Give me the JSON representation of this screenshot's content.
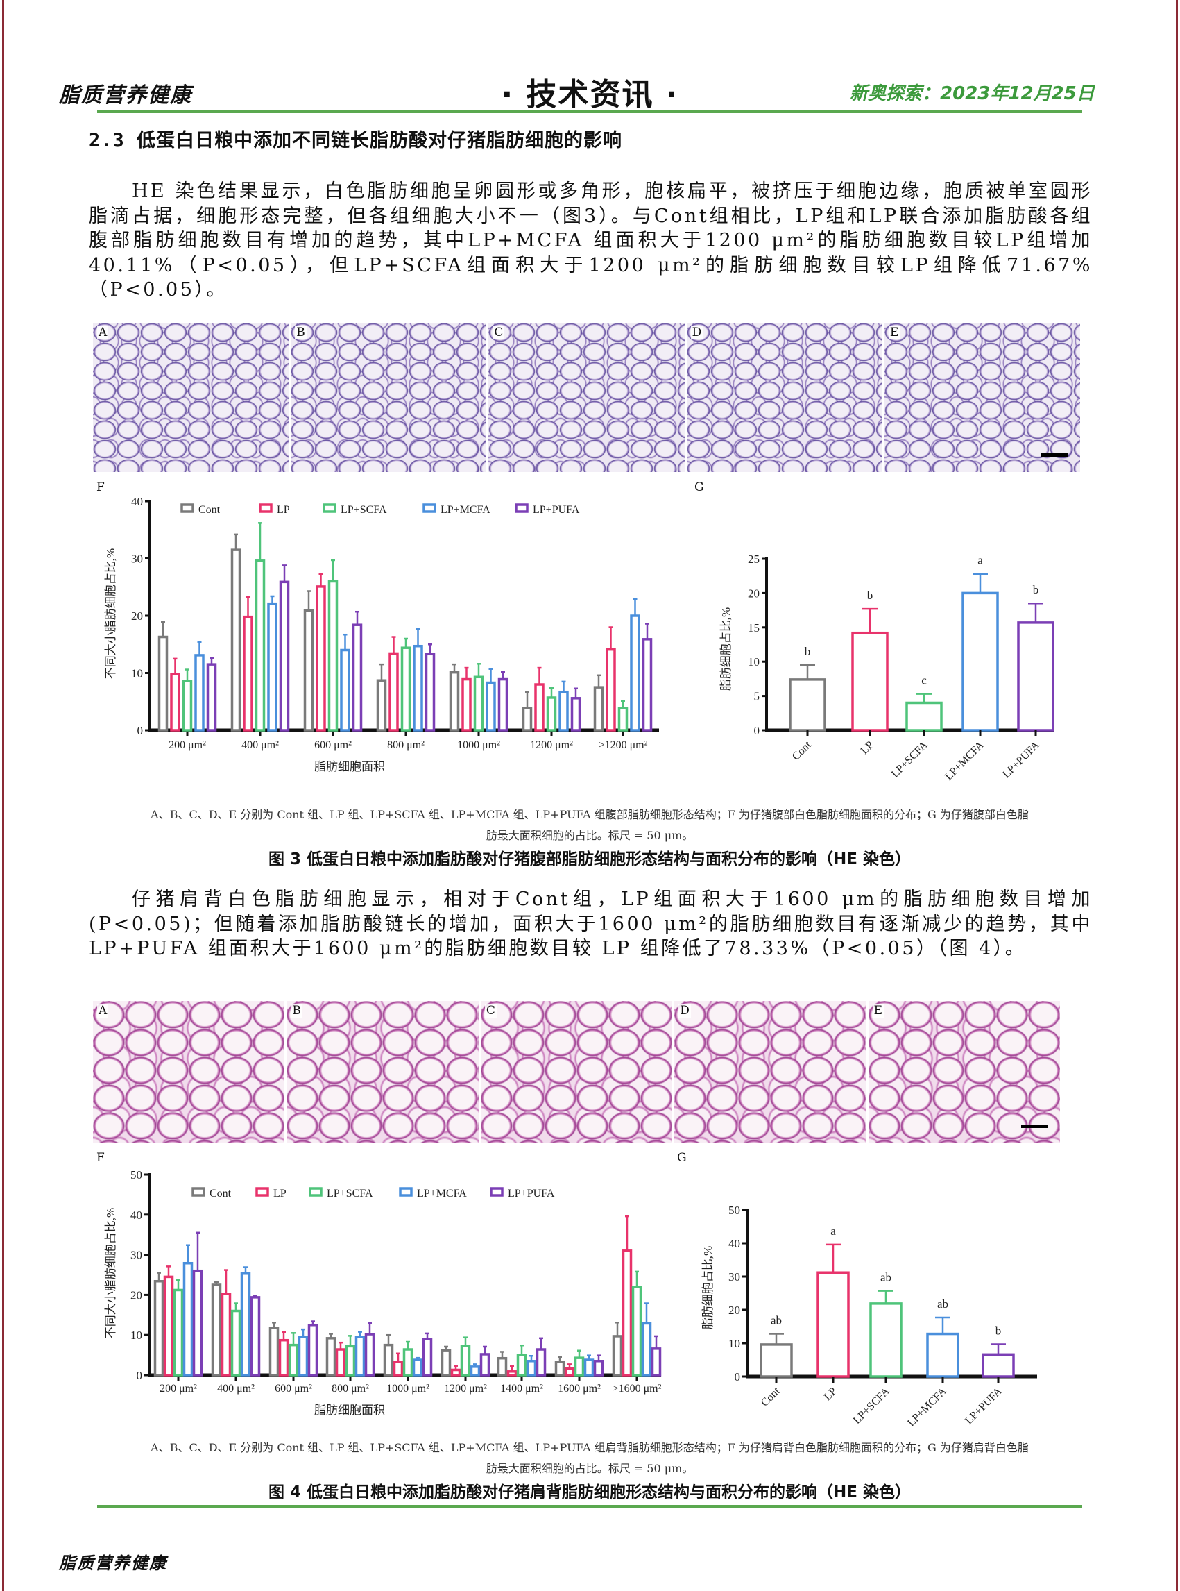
{
  "header": {
    "left": "脂质营养健康",
    "center": "· 技术资讯 ·",
    "right": "新奥探索：2023年12月25日"
  },
  "section_heading": "2.3 低蛋白日粮中添加不同链长脂肪酸对仔猪脂肪细胞的影响",
  "paragraph1": "HE 染色结果显示，白色脂肪细胞呈卵圆形或多角形，胞核扁平，被挤压于细胞边缘，胞质被单室圆形脂滴占据，细胞形态完整，但各组细胞大小不一（图3）。与Cont组相比，LP组和LP联合添加脂肪酸各组腹部脂肪细胞数目有增加的趋势，其中LP+MCFA 组面积大于1200 μm²的脂肪细胞数目较LP组增加40.11%（P<0.05），但LP+SCFA组面积大于1200 μm²的脂肪细胞数目较LP组降低71.67%（P<0.05）。",
  "paragraph2": "仔猪肩背白色脂肪细胞显示，相对于Cont组，LP组面积大于1600 μm的脂肪细胞数目增加(P<0.05)；但随着添加脂肪酸链长的增加，面积大于1600 μm²的脂肪细胞数目有逐渐减少的趋势，其中 LP+PUFA 组面积大于1600 μm²的脂肪细胞数目较 LP 组降低了78.33%（P<0.05）（图 4）。",
  "figure3": {
    "panels": [
      "A",
      "B",
      "C",
      "D",
      "E"
    ],
    "f_label": "F",
    "g_label": "G",
    "caption_line1": "A、B、C、D、E 分别为 Cont 组、LP 组、LP+SCFA 组、LP+MCFA 组、LP+PUFA 组腹部脂肪细胞形态结构；F 为仔猪腹部白色脂肪细胞面积的分布；G 为仔猪腹部白色脂",
    "caption_line2": "肪最大面积细胞的占比。标尺 = 50 μm。",
    "title": "图 3 低蛋白日粮中添加脂肪酸对仔猪腹部脂肪细胞形态结构与面积分布的影响（HE 染色）"
  },
  "figure4": {
    "panels": [
      "A",
      "B",
      "C",
      "D",
      "E"
    ],
    "f_label": "F",
    "g_label": "G",
    "caption_line1": "A、B、C、D、E 分别为 Cont 组、LP 组、LP+SCFA 组、LP+MCFA 组、LP+PUFA 组肩背脂肪细胞形态结构；F 为仔猪肩背白色脂肪细胞面积的分布；G 为仔猪肩背白色脂",
    "caption_line2": "肪最大面积细胞的占比。标尺 = 50 μm。",
    "title": "图 4 低蛋白日粮中添加脂肪酸对仔猪肩背脂肪细胞形态结构与面积分布的影响（HE 染色）"
  },
  "footer": {
    "text": "脂质营养健康"
  },
  "colors": {
    "Cont": "#7a7a7a",
    "LP": "#e8336b",
    "LP+SCFA": "#4fc47a",
    "LP+MCFA": "#4a8fdc",
    "LP+PUFA": "#7b3fb5",
    "header_date": "#3c9a3c",
    "rule": "#5aa84f"
  },
  "chart_data": [
    {
      "id": "fig3F",
      "type": "bar",
      "ylabel": "不同大小脂肪细胞占比,%",
      "xlabel": "脂肪细胞面积",
      "ylim": [
        0,
        40
      ],
      "yticks": [
        0,
        10,
        20,
        30,
        40
      ],
      "legend": "top",
      "categories": [
        "200 μm²",
        "400 μm²",
        "600 μm²",
        "800 μm²",
        "1000 μm²",
        "1200 μm²",
        ">1200 μm²"
      ],
      "series": [
        {
          "name": "Cont",
          "values": [
            16.3,
            31.5,
            20.9,
            8.7,
            10.1,
            3.9,
            7.5
          ],
          "error": [
            2.6,
            2.7,
            3.4,
            2.8,
            1.4,
            2.8,
            2.1
          ]
        },
        {
          "name": "LP",
          "values": [
            9.8,
            19.8,
            25.1,
            13.4,
            8.9,
            8.0,
            14.1
          ],
          "error": [
            2.7,
            3.5,
            2.2,
            2.9,
            2.0,
            2.9,
            3.9
          ]
        },
        {
          "name": "LP+SCFA",
          "values": [
            8.6,
            29.6,
            26.0,
            14.4,
            9.3,
            5.7,
            3.9
          ],
          "error": [
            2.0,
            6.6,
            3.7,
            1.6,
            2.3,
            1.7,
            1.2
          ]
        },
        {
          "name": "LP+MCFA",
          "values": [
            13.1,
            22.1,
            14.0,
            14.7,
            8.3,
            6.7,
            20.0
          ],
          "error": [
            2.3,
            1.3,
            2.7,
            3.0,
            2.4,
            1.8,
            2.9
          ]
        },
        {
          "name": "LP+PUFA",
          "values": [
            11.5,
            25.9,
            18.4,
            13.3,
            8.9,
            5.6,
            15.9
          ],
          "error": [
            1.1,
            2.9,
            2.3,
            1.7,
            1.3,
            1.7,
            2.7
          ]
        }
      ]
    },
    {
      "id": "fig3G",
      "type": "bar",
      "ylabel": "脂肪细胞占比,%",
      "ylim": [
        0,
        25
      ],
      "yticks": [
        0,
        5,
        10,
        15,
        20,
        25
      ],
      "categories": [
        "Cont",
        "LP",
        "LP+SCFA",
        "LP+MCFA",
        "LP+PUFA"
      ],
      "values": [
        7.4,
        14.2,
        4.0,
        20.0,
        15.7
      ],
      "error": [
        2.1,
        3.5,
        1.3,
        2.8,
        2.8
      ],
      "significance": [
        "b",
        "b",
        "c",
        "a",
        "b"
      ]
    },
    {
      "id": "fig4F",
      "type": "bar",
      "ylabel": "不同大小脂肪细胞占比,%",
      "xlabel": "脂肪细胞面积",
      "ylim": [
        0,
        50
      ],
      "yticks": [
        0,
        10,
        20,
        30,
        40,
        50
      ],
      "legend": "top",
      "categories": [
        "200 μm²",
        "400 μm²",
        "600 μm²",
        "800 μm²",
        "1000 μm²",
        "1200 μm²",
        "1400 μm²",
        "1600 μm²",
        ">1600 μm²"
      ],
      "series": [
        {
          "name": "Cont",
          "values": [
            23.4,
            22.5,
            11.8,
            9.2,
            7.5,
            6.2,
            4.2,
            3.3,
            9.7
          ],
          "error": [
            2.1,
            0.7,
            1.3,
            1.1,
            2.5,
            0.9,
            1.6,
            1.2,
            3.4
          ]
        },
        {
          "name": "LP",
          "values": [
            24.5,
            20.2,
            8.7,
            6.4,
            3.3,
            1.3,
            0.9,
            1.6,
            31.0
          ],
          "error": [
            2.6,
            6.0,
            2.0,
            1.7,
            2.1,
            1.0,
            1.3,
            1.1,
            8.6
          ]
        },
        {
          "name": "LP+SCFA",
          "values": [
            21.2,
            16.0,
            7.5,
            7.2,
            6.4,
            7.3,
            5.0,
            4.3,
            22.0
          ],
          "error": [
            2.5,
            1.9,
            3.0,
            2.6,
            1.9,
            2.1,
            2.4,
            1.8,
            3.8
          ]
        },
        {
          "name": "LP+MCFA",
          "values": [
            27.9,
            25.3,
            9.5,
            9.5,
            3.8,
            2.1,
            3.5,
            3.8,
            12.9
          ],
          "error": [
            4.5,
            1.6,
            1.9,
            1.3,
            0.5,
            0.6,
            1.3,
            1.1,
            5.0
          ]
        },
        {
          "name": "LP+PUFA",
          "values": [
            26.0,
            19.4,
            12.5,
            10.2,
            9.0,
            5.2,
            6.4,
            3.5,
            6.6
          ],
          "error": [
            9.5,
            0.3,
            0.9,
            2.8,
            1.4,
            1.9,
            2.8,
            1.4,
            3.1
          ]
        }
      ]
    },
    {
      "id": "fig4G",
      "type": "bar",
      "ylabel": "脂肪细胞占比,%",
      "ylim": [
        0,
        50
      ],
      "yticks": [
        0,
        10,
        20,
        30,
        40,
        50
      ],
      "categories": [
        "Cont",
        "LP",
        "LP+SCFA",
        "LP+MCFA",
        "LP+PUFA"
      ],
      "values": [
        9.6,
        31.2,
        21.9,
        12.8,
        6.6
      ],
      "error": [
        3.2,
        8.4,
        3.8,
        4.9,
        3.1
      ],
      "significance": [
        "ab",
        "a",
        "ab",
        "ab",
        "b"
      ]
    }
  ]
}
